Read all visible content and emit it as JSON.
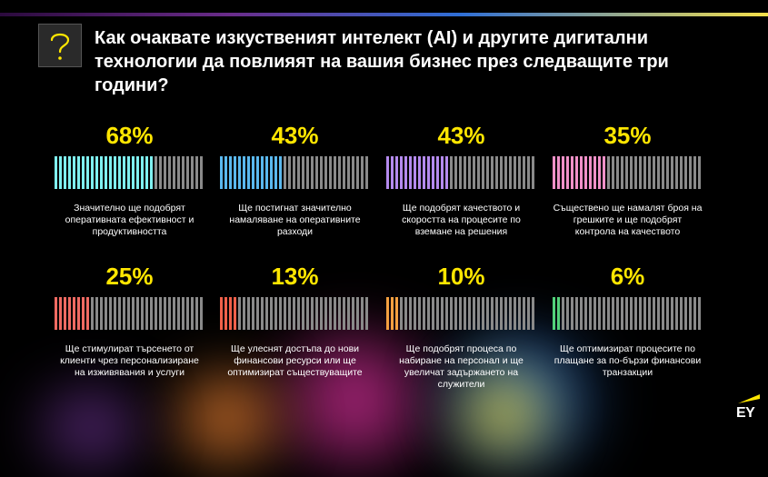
{
  "header": {
    "title": "Как очаквате изкуственият интелект (AI) и другите дигитални технологии да повлияят на вашия бизнес през следващите три години?",
    "icon": "question-mark-icon"
  },
  "brand": {
    "logo_text": "EY",
    "logo_accent": "#ffe600"
  },
  "chart_data": {
    "type": "bar",
    "unit": "%",
    "categories": [
      [
        "Значително ще подобрят",
        "оперативната ефективност и",
        "продуктивността"
      ],
      [
        "Ще постигнат значително",
        "намаляване на оперативните",
        "разходи"
      ],
      [
        "Ще подобрят качеството и",
        "скоростта на процесите по",
        "вземане на решения"
      ],
      [
        "Съществено ще намалят броя на",
        "грешките и ще подобрят",
        "контрола на качеството"
      ],
      [
        "Ще стимулират търсенето от",
        "клиенти чрез персонализиране",
        "на изживявания и услуги"
      ],
      [
        "Ще улеснят достъпа до нови",
        "финансови ресурси или ще",
        "оптимизират съществуващите"
      ],
      [
        "Ще подобрят процеса по",
        "набиране на персонал и ще",
        "увеличат задържането на",
        "служители"
      ],
      [
        "Ще оптимизират процесите по",
        "плащане за по-бързи финансови",
        "транзакции"
      ]
    ],
    "values": [
      68,
      43,
      43,
      35,
      25,
      13,
      10,
      6
    ],
    "labels": [
      "68%",
      "43%",
      "43%",
      "35%",
      "25%",
      "13%",
      "10%",
      "6%"
    ],
    "ylim": [
      0,
      100
    ],
    "colors": [
      "#7ff0f0",
      "#5ab8ee",
      "#b48aee",
      "#f090c8",
      "#f06a62",
      "#f0604a",
      "#f5a040",
      "#52d27a"
    ],
    "remainder_color": "#8a8a8a",
    "value_label_color": "#ffe600",
    "layout": "grid 4x2"
  }
}
